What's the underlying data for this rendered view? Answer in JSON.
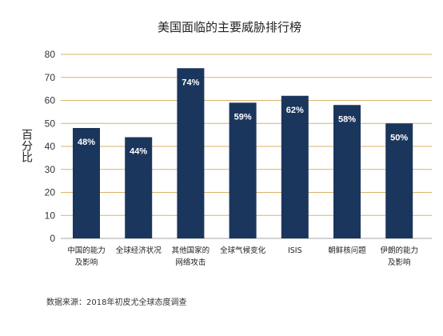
{
  "chart_data": {
    "type": "bar",
    "title": "美国面临的主要威胁排行榜",
    "ylabel": "百分比",
    "xlabel": "",
    "ylim": [
      0,
      80
    ],
    "yticks": [
      0,
      10,
      20,
      30,
      40,
      50,
      60,
      70,
      80
    ],
    "grid": true,
    "categories": [
      [
        "中国的能力",
        "及影响"
      ],
      [
        "全球经济状况"
      ],
      [
        "其他国家的",
        "网络攻击"
      ],
      [
        "全球气候变化"
      ],
      [
        "ISIS"
      ],
      [
        "朝鲜核问题"
      ],
      [
        "伊朗的能力",
        "及影响"
      ]
    ],
    "values": [
      48,
      44,
      74,
      59,
      62,
      58,
      50
    ],
    "data_labels": [
      "48%",
      "44%",
      "74%",
      "59%",
      "62%",
      "58%",
      "50%"
    ],
    "bar_color": "#1b365d",
    "grid_color": "#d9b36b",
    "axis_color": "#b8b8b8"
  },
  "source": "数据来源：2018年初皮尤全球态度调查"
}
